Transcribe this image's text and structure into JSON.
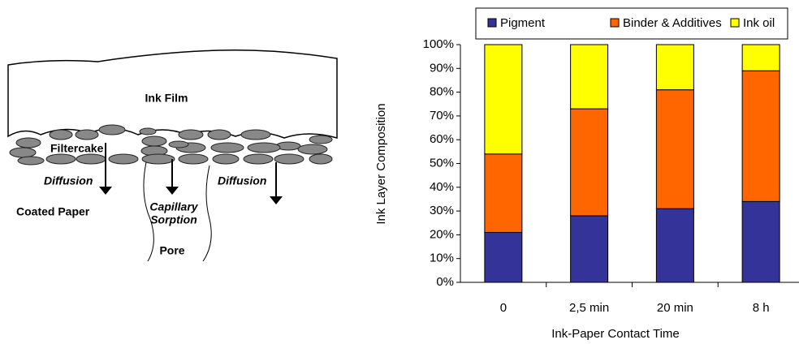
{
  "diagram": {
    "ink_film": "Ink Film",
    "filtercake": "Filtercake",
    "diffusion_left": "Diffusion",
    "diffusion_right": "Diffusion",
    "coated_paper": "Coated Paper",
    "capillary": "Capillary",
    "sorption": "Sorption",
    "pore": "Pore"
  },
  "chart_data": {
    "type": "stacked_bar",
    "x_label": "Ink-Paper Contact Time",
    "y_label": "Ink Layer Composition",
    "categories": [
      "0",
      "2,5 min",
      "20 min",
      "8 h"
    ],
    "series": [
      {
        "name": "Pigment",
        "color": "#333399",
        "values": [
          21,
          28,
          31,
          34
        ]
      },
      {
        "name": "Binder & Additives",
        "color": "#ff6600",
        "values": [
          33,
          45,
          50,
          55
        ]
      },
      {
        "name": "Ink oil",
        "color": "#ffff00",
        "values": [
          46,
          27,
          19,
          11
        ]
      }
    ],
    "ylim": [
      0,
      100
    ],
    "yticks": [
      {
        "value": 0,
        "label": "0%"
      },
      {
        "value": 10,
        "label": "10%"
      },
      {
        "value": 20,
        "label": "20%"
      },
      {
        "value": 30,
        "label": "30%"
      },
      {
        "value": 40,
        "label": "40%"
      },
      {
        "value": 50,
        "label": "50%"
      },
      {
        "value": 60,
        "label": "60%"
      },
      {
        "value": 70,
        "label": "70%"
      },
      {
        "value": 80,
        "label": "80%"
      },
      {
        "value": 90,
        "label": "90%"
      },
      {
        "value": 100,
        "label": "100%"
      }
    ],
    "legend": "top"
  }
}
